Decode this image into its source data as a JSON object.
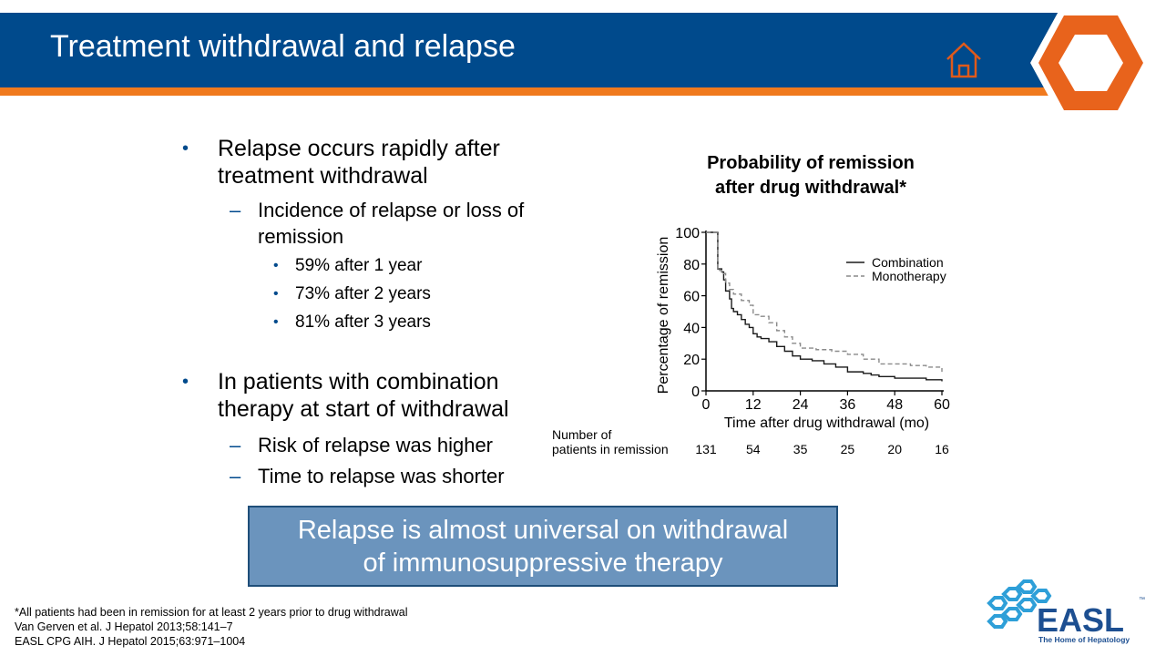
{
  "slide": {
    "title": "Treatment withdrawal and relapse"
  },
  "bullets": {
    "b1_line1": "Relapse occurs rapidly after",
    "b1_line2": "treatment withdrawal",
    "b1_sub": "Incidence of relapse or loss of remission",
    "b1_subitems": [
      "59% after 1 year",
      "73% after 2 years",
      "81% after 3 years"
    ],
    "b2_line1": "In patients with combination",
    "b2_line2": "therapy at start of withdrawal",
    "b2_subs": [
      "Risk of relapse was higher",
      "Time to relapse was shorter"
    ]
  },
  "callout": {
    "line1": "Relapse is almost universal on withdrawal",
    "line2": "of immunosuppressive therapy"
  },
  "footnotes": [
    "*All patients had been in remission for at least 2 years prior to drug withdrawal",
    "Van Gerven  et al. J Hepatol 2013;58:141–7",
    "EASL CPG AIH. J Hepatol 2015;63:971–1004"
  ],
  "logo": {
    "text": "EASL",
    "tagline": "The Home of Hepatology",
    "tm": "™"
  },
  "colors": {
    "header_blue": "#004a8c",
    "accent_orange": "#f07a1e",
    "callout_fill": "#6b94bd"
  },
  "chart_data": {
    "type": "line",
    "title": "Probability  of remission\nafter drug withdrawal*",
    "title_lines": [
      "Probability  of remission",
      "after drug withdrawal*"
    ],
    "xlabel": "Time after drug withdrawal (mo)",
    "ylabel": "Percentage of remission",
    "xlim": [
      0,
      60
    ],
    "ylim": [
      0,
      100
    ],
    "xticks": [
      0,
      12,
      24,
      36,
      48,
      60
    ],
    "yticks": [
      0,
      20,
      40,
      60,
      80,
      100
    ],
    "legend_position": "top-right",
    "series": [
      {
        "name": "Combination",
        "style": "solid",
        "x": [
          0,
          3,
          3,
          4,
          4.5,
          5,
          6,
          6.5,
          7,
          8,
          9,
          10,
          11,
          12,
          13,
          14,
          16,
          18,
          20,
          22,
          24,
          27,
          30,
          33,
          36,
          40,
          42,
          44,
          48,
          52,
          56,
          60
        ],
        "y": [
          100,
          100,
          77,
          75,
          70,
          63,
          58,
          52,
          50,
          48,
          45,
          42,
          40,
          36,
          34,
          33,
          31,
          28,
          25,
          22,
          20,
          19,
          17,
          15,
          12,
          11,
          10,
          9,
          8,
          8,
          7,
          6
        ]
      },
      {
        "name": "Monotherapy",
        "style": "dashed",
        "x": [
          0,
          3,
          3,
          4,
          5,
          6,
          7,
          9,
          11,
          12,
          14,
          16,
          18,
          20,
          22,
          24,
          28,
          32,
          36,
          40,
          44,
          48,
          52,
          56,
          60
        ],
        "y": [
          100,
          100,
          76,
          74,
          68,
          64,
          61,
          57,
          54,
          48,
          47,
          43,
          38,
          34,
          30,
          27,
          26,
          25,
          23,
          20,
          17,
          17,
          16,
          15,
          12
        ]
      }
    ],
    "risk_table": {
      "label_line1": "Number of",
      "label_line2": "patients in remission",
      "x": [
        0,
        12,
        24,
        36,
        48,
        60
      ],
      "values": [
        "131",
        "54",
        "35",
        "25",
        "20",
        "16"
      ]
    }
  }
}
